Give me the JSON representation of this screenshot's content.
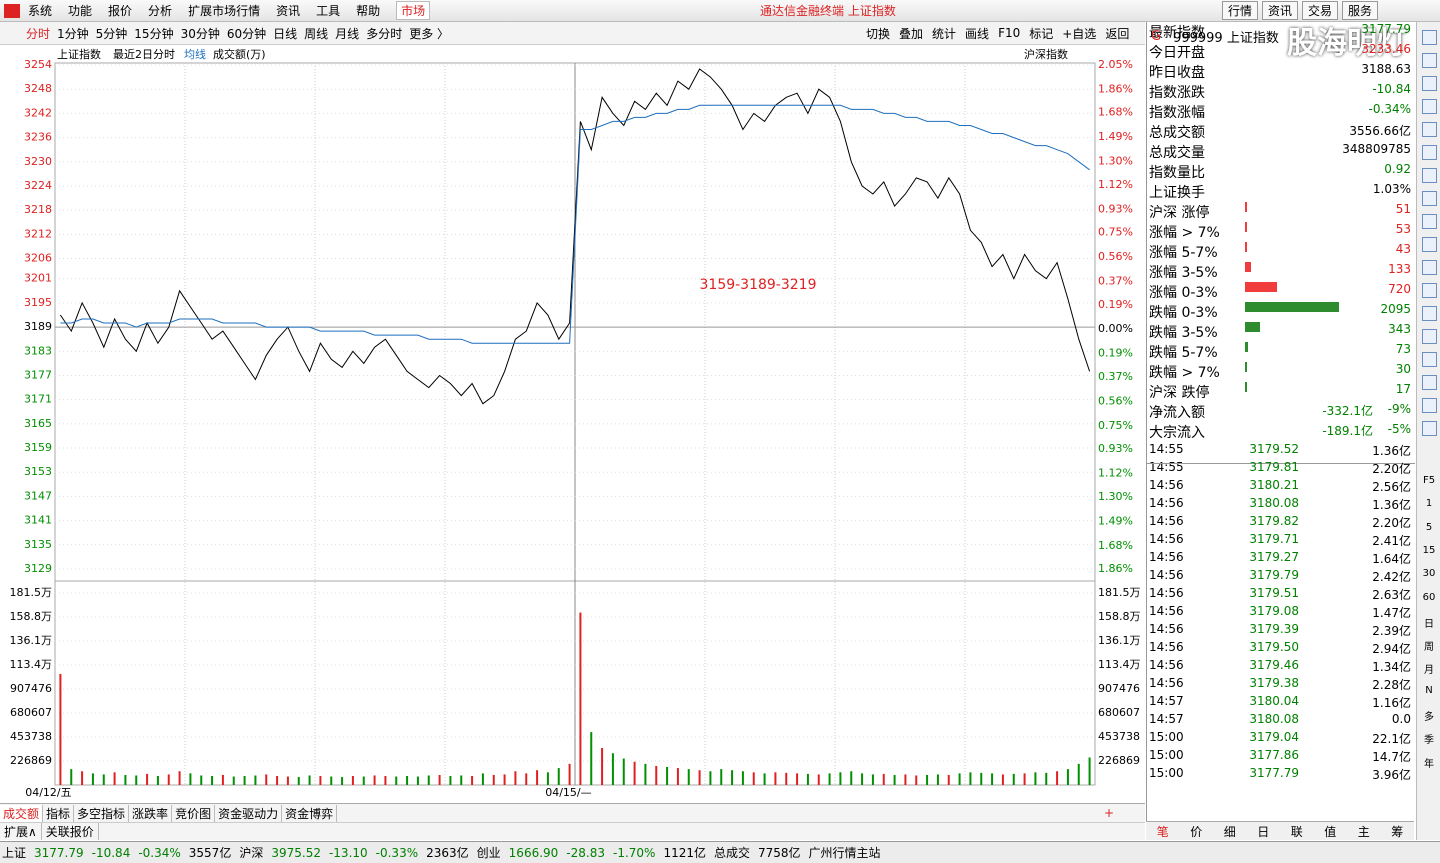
{
  "window_title": "通达信金融终端 上证指数",
  "menu": [
    "系统",
    "功能",
    "报价",
    "分析",
    "扩展市场行情",
    "资讯",
    "工具",
    "帮助"
  ],
  "menu_active": "市场",
  "top_buttons": [
    "行情",
    "资讯",
    "交易",
    "服务"
  ],
  "watermark": "股海明灯",
  "periods": [
    "分时",
    "1分钟",
    "5分钟",
    "15分钟",
    "30分钟",
    "60分钟",
    "日线",
    "周线",
    "月线",
    "多分时",
    "更多 〉"
  ],
  "tools": [
    "切换",
    "叠加",
    "统计",
    "画线",
    "F10",
    "标记",
    "+自选",
    "返回"
  ],
  "chart_header": {
    "mode": "最近2日分时",
    "right": "沪深指数"
  },
  "chart_data": {
    "type": "line",
    "annotation": "3159-3189-3219",
    "categories": [
      "04/12/五",
      null,
      null,
      null,
      null,
      null,
      null,
      null,
      null,
      null,
      null,
      null,
      null,
      null,
      null,
      null,
      null,
      null,
      null,
      null,
      null,
      null,
      null,
      null,
      null,
      null,
      null,
      null,
      null,
      null,
      null,
      null,
      null,
      null,
      null,
      null,
      null,
      null,
      null,
      null,
      null,
      null,
      null,
      null,
      null,
      null,
      null,
      null,
      "04/15/—",
      null,
      null,
      null,
      null,
      null,
      null,
      null,
      null,
      null,
      null,
      null,
      null,
      null,
      null,
      null,
      null,
      null,
      null,
      null,
      null,
      null,
      null,
      null,
      null,
      null,
      null,
      null,
      null,
      null,
      null,
      null,
      null,
      null,
      null,
      null,
      null,
      null,
      null,
      null,
      null,
      null,
      null,
      null,
      null,
      null,
      null,
      null
    ],
    "series": [
      {
        "name": "上证指数",
        "color": "#000000",
        "values": [
          3192,
          3188,
          3195,
          3190,
          3184,
          3191,
          3186,
          3183,
          3190,
          3185,
          3189,
          3198,
          3194,
          3190,
          3186,
          3188,
          3184,
          3180,
          3176,
          3182,
          3186,
          3189,
          3183,
          3178,
          3185,
          3181,
          3179,
          3183,
          3180,
          3184,
          3186,
          3182,
          3178,
          3176,
          3174,
          3177,
          3175,
          3172,
          3175,
          3170,
          3172,
          3178,
          3186,
          3188,
          3195,
          3192,
          3186,
          3190,
          3240,
          3233,
          3246,
          3242,
          3239,
          3245,
          3243,
          3247,
          3244,
          3250,
          3248,
          3253,
          3251,
          3248,
          3244,
          3238,
          3242,
          3240,
          3244,
          3246,
          3247,
          3242,
          3248,
          3246,
          3240,
          3230,
          3224,
          3222,
          3225,
          3219,
          3222,
          3226,
          3225,
          3221,
          3226,
          3222,
          3213,
          3210,
          3204,
          3207,
          3201,
          3207,
          3203,
          3201,
          3205,
          3196,
          3186,
          3178
        ]
      },
      {
        "name": "均线",
        "color": "#1e6fbf",
        "values": [
          3190,
          3190,
          3191,
          3191,
          3190,
          3190,
          3190,
          3189,
          3190,
          3190,
          3190,
          3191,
          3191,
          3191,
          3191,
          3190,
          3190,
          3190,
          3190,
          3189,
          3189,
          3189,
          3189,
          3189,
          3188,
          3188,
          3188,
          3188,
          3188,
          3187,
          3187,
          3187,
          3187,
          3187,
          3186,
          3186,
          3186,
          3186,
          3185,
          3185,
          3185,
          3185,
          3185,
          3185,
          3185,
          3185,
          3185,
          3185,
          3238,
          3238,
          3239,
          3240,
          3240,
          3241,
          3241,
          3242,
          3242,
          3243,
          3243,
          3244,
          3244,
          3244,
          3244,
          3244,
          3244,
          3244,
          3244,
          3244,
          3244,
          3244,
          3244,
          3244,
          3244,
          3243,
          3243,
          3243,
          3242,
          3242,
          3241,
          3241,
          3240,
          3240,
          3240,
          3239,
          3239,
          3238,
          3237,
          3237,
          3236,
          3235,
          3234,
          3234,
          3233,
          3232,
          3230,
          3228
        ]
      }
    ],
    "ylim": [
      3129,
      3254
    ],
    "yticks": [
      3254,
      3248,
      3242,
      3236,
      3230,
      3224,
      3218,
      3212,
      3206,
      3201,
      3195,
      3189,
      3183,
      3177,
      3171,
      3165,
      3159,
      3153,
      3147,
      3141,
      3135,
      3129
    ],
    "y2lim": [
      -1.86,
      2.05
    ],
    "y2ticks": [
      {
        "value": 2.05,
        "label": "2.05%"
      },
      {
        "value": 1.86,
        "label": "1.86%"
      },
      {
        "value": 1.68,
        "label": "1.68%"
      },
      {
        "value": 1.49,
        "label": "1.49%"
      },
      {
        "value": 1.3,
        "label": "1.30%"
      },
      {
        "value": 1.12,
        "label": "1.12%"
      },
      {
        "value": 0.93,
        "label": "0.93%"
      },
      {
        "value": 0.75,
        "label": "0.75%"
      },
      {
        "value": 0.56,
        "label": "0.56%"
      },
      {
        "value": 0.37,
        "label": "0.37%"
      },
      {
        "value": 0.19,
        "label": "0.19%"
      },
      {
        "value": 0,
        "label": "0.00%"
      },
      {
        "value": -0.19,
        "label": "0.19%"
      },
      {
        "value": -0.37,
        "label": "0.37%"
      },
      {
        "value": -0.56,
        "label": "0.56%"
      },
      {
        "value": -0.75,
        "label": "0.75%"
      },
      {
        "value": -0.93,
        "label": "0.93%"
      },
      {
        "value": -1.12,
        "label": "1.12%"
      },
      {
        "value": -1.3,
        "label": "1.30%"
      },
      {
        "value": -1.49,
        "label": "1.49%"
      },
      {
        "value": -1.68,
        "label": "1.68%"
      },
      {
        "value": -1.86,
        "label": "1.86%"
      }
    ],
    "up_color": "#e02020",
    "down_color": "#009000",
    "grid": true,
    "volume_panel": {
      "label": "成交额(万)",
      "ylim": [
        0,
        1815000
      ],
      "yticks": [
        {
          "value": 1815000,
          "label": "181.5万"
        },
        {
          "value": 1588000,
          "label": "158.8万"
        },
        {
          "value": 1361000,
          "label": "136.1万"
        },
        {
          "value": 1134000,
          "label": "113.4万"
        },
        907476,
        680607,
        453738,
        226869
      ],
      "values": [
        1050000,
        150000,
        130000,
        110000,
        100000,
        120000,
        95000,
        90000,
        105000,
        85000,
        100000,
        130000,
        110000,
        90000,
        85000,
        95000,
        80000,
        85000,
        90000,
        100000,
        85000,
        80000,
        75000,
        90000,
        85000,
        80000,
        75000,
        85000,
        80000,
        90000,
        85000,
        80000,
        85000,
        80000,
        90000,
        95000,
        85000,
        90000,
        85000,
        110000,
        95000,
        100000,
        130000,
        110000,
        140000,
        120000,
        160000,
        200000,
        1630000,
        500000,
        350000,
        300000,
        250000,
        220000,
        200000,
        180000,
        170000,
        160000,
        150000,
        140000,
        130000,
        150000,
        140000,
        130000,
        120000,
        110000,
        120000,
        115000,
        110000,
        105000,
        100000,
        110000,
        120000,
        130000,
        110000,
        100000,
        105000,
        95000,
        100000,
        90000,
        95000,
        100000,
        95000,
        110000,
        120000,
        115000,
        110000,
        100000,
        105000,
        110000,
        120000,
        115000,
        130000,
        150000,
        200000,
        260000
      ]
    }
  },
  "quote": {
    "code": "G",
    "symbol": "999999 上证指数",
    "rows": [
      {
        "label": "最新指数",
        "value": "3177.79",
        "color": "#008000"
      },
      {
        "label": "今日开盘",
        "value": "3233.46",
        "color": "#e02020"
      },
      {
        "label": "昨日收盘",
        "value": "3188.63",
        "color": "#000000"
      },
      {
        "label": "指数涨跌",
        "value": "-10.84",
        "color": "#008000"
      },
      {
        "label": "指数涨幅",
        "value": "-0.34%",
        "color": "#008000"
      },
      {
        "label": "总成交额",
        "value": "3556.66亿",
        "color": "#000000"
      },
      {
        "label": "总成交量",
        "value": "348809785",
        "color": "#000000"
      },
      {
        "label": "指数量比",
        "value": "0.92",
        "color": "#008000"
      },
      {
        "label": "上证换手",
        "value": "1.03%",
        "color": "#000000"
      }
    ]
  },
  "limit_stats": [
    {
      "label": "沪深 涨停",
      "value": 51,
      "color": "#f03c3c"
    },
    {
      "label": "涨幅 > 7%",
      "value": 53,
      "color": "#f03c3c"
    },
    {
      "label": "涨幅 5-7%",
      "value": 43,
      "color": "#f03c3c"
    },
    {
      "label": "涨幅 3-5%",
      "value": 133,
      "color": "#f03c3c"
    },
    {
      "label": "涨幅 0-3%",
      "value": 720,
      "color": "#f03c3c"
    },
    {
      "label": "跌幅 0-3%",
      "value": 2095,
      "color": "#2e8b2e"
    },
    {
      "label": "跌幅 3-5%",
      "value": 343,
      "color": "#2e8b2e"
    },
    {
      "label": "跌幅 5-7%",
      "value": 73,
      "color": "#2e8b2e"
    },
    {
      "label": "跌幅 > 7%",
      "value": 30,
      "color": "#2e8b2e"
    },
    {
      "label": "沪深 跌停",
      "value": 17,
      "color": "#2e8b2e"
    }
  ],
  "flows": [
    {
      "label": "净流入额",
      "amount": "-332.1亿",
      "pct": "-9%"
    },
    {
      "label": "大宗流入",
      "amount": "-189.1亿",
      "pct": "-5%"
    }
  ],
  "ticks": [
    [
      "14:55",
      "3179.52",
      "1.36亿"
    ],
    [
      "14:55",
      "3179.81",
      "2.20亿"
    ],
    [
      "14:56",
      "3180.21",
      "2.56亿"
    ],
    [
      "14:56",
      "3180.08",
      "1.36亿"
    ],
    [
      "14:56",
      "3179.82",
      "2.20亿"
    ],
    [
      "14:56",
      "3179.71",
      "2.41亿"
    ],
    [
      "14:56",
      "3179.27",
      "1.64亿"
    ],
    [
      "14:56",
      "3179.79",
      "2.42亿"
    ],
    [
      "14:56",
      "3179.51",
      "2.63亿"
    ],
    [
      "14:56",
      "3179.08",
      "1.47亿"
    ],
    [
      "14:56",
      "3179.39",
      "2.39亿"
    ],
    [
      "14:56",
      "3179.50",
      "2.94亿"
    ],
    [
      "14:56",
      "3179.46",
      "1.34亿"
    ],
    [
      "14:56",
      "3179.38",
      "2.28亿"
    ],
    [
      "14:57",
      "3180.04",
      "1.16亿"
    ],
    [
      "14:57",
      "3180.08",
      "0.0"
    ],
    [
      "15:00",
      "3179.04",
      "22.1亿"
    ],
    [
      "15:00",
      "3177.86",
      "14.7亿"
    ],
    [
      "15:00",
      "3177.79",
      "3.96亿"
    ]
  ],
  "side_icons": [
    "F5",
    "1",
    "5",
    "15",
    "30",
    "60",
    "日",
    "周",
    "月",
    "N",
    "多",
    "季",
    "年"
  ],
  "bottom_tabs": [
    "成交额",
    "指标",
    "多空指标",
    "涨跌率",
    "竞价图",
    "资金驱动力",
    "资金博弈"
  ],
  "bottom_row2": [
    "扩展∧",
    "关联报价"
  ],
  "right_tabs": [
    "笔",
    "价",
    "细",
    "日",
    "联",
    "值",
    "主",
    "筹"
  ],
  "status": [
    {
      "text": "上证",
      "color": "#000000"
    },
    {
      "text": "3177.79",
      "color": "#008000"
    },
    {
      "text": "-10.84",
      "color": "#008000"
    },
    {
      "text": "-0.34%",
      "color": "#008000"
    },
    {
      "text": "3557亿",
      "color": "#000000"
    },
    {
      "text": "沪深",
      "color": "#000000"
    },
    {
      "text": "3975.52",
      "color": "#008000"
    },
    {
      "text": "-13.10",
      "color": "#008000"
    },
    {
      "text": "-0.33%",
      "color": "#008000"
    },
    {
      "text": "2363亿",
      "color": "#000000"
    },
    {
      "text": "创业",
      "color": "#000000"
    },
    {
      "text": "1666.90",
      "color": "#008000"
    },
    {
      "text": "-28.83",
      "color": "#008000"
    },
    {
      "text": "-1.70%",
      "color": "#008000"
    },
    {
      "text": "1121亿",
      "color": "#000000"
    },
    {
      "text": "总成交",
      "color": "#000000"
    },
    {
      "text": "7758亿",
      "color": "#000000"
    },
    {
      "text": "广州行情主站",
      "color": "#000000"
    }
  ]
}
